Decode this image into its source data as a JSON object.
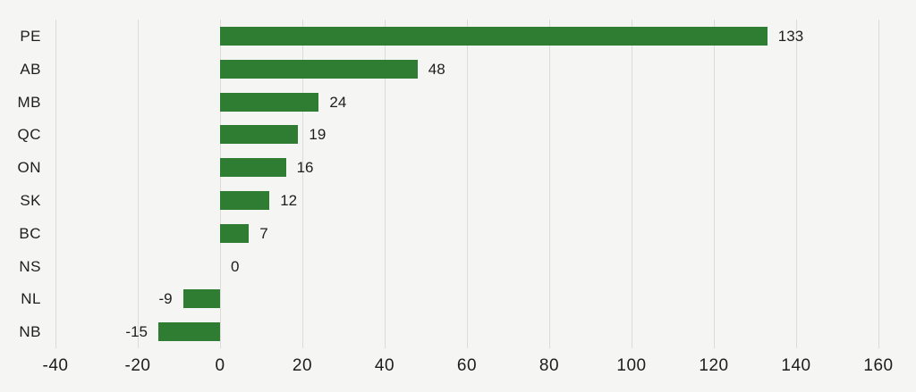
{
  "chart_data": {
    "type": "bar",
    "orientation": "horizontal",
    "title": "",
    "xlabel": "",
    "ylabel": "",
    "categories": [
      "PE",
      "AB",
      "MB",
      "QC",
      "ON",
      "SK",
      "BC",
      "NS",
      "NL",
      "NB"
    ],
    "values": [
      133,
      48,
      24,
      19,
      16,
      12,
      7,
      0,
      -9,
      -15
    ],
    "value_labels": [
      "133",
      "48",
      "24",
      "19",
      "16",
      "12",
      "7",
      "0",
      "-9",
      "-15"
    ],
    "xlim": [
      -40,
      160
    ],
    "xticks": [
      -40,
      -20,
      0,
      20,
      40,
      60,
      80,
      100,
      120,
      140,
      160
    ],
    "xtick_labels": [
      "-40",
      "-20",
      "0",
      "20",
      "40",
      "60",
      "80",
      "100",
      "120",
      "140",
      "160"
    ],
    "grid": true,
    "legend": false,
    "colors": {
      "bar": "#2e7d32",
      "background": "#f5f5f4",
      "gridline": "#dbdbd9",
      "text": "#1d1d1d"
    }
  }
}
